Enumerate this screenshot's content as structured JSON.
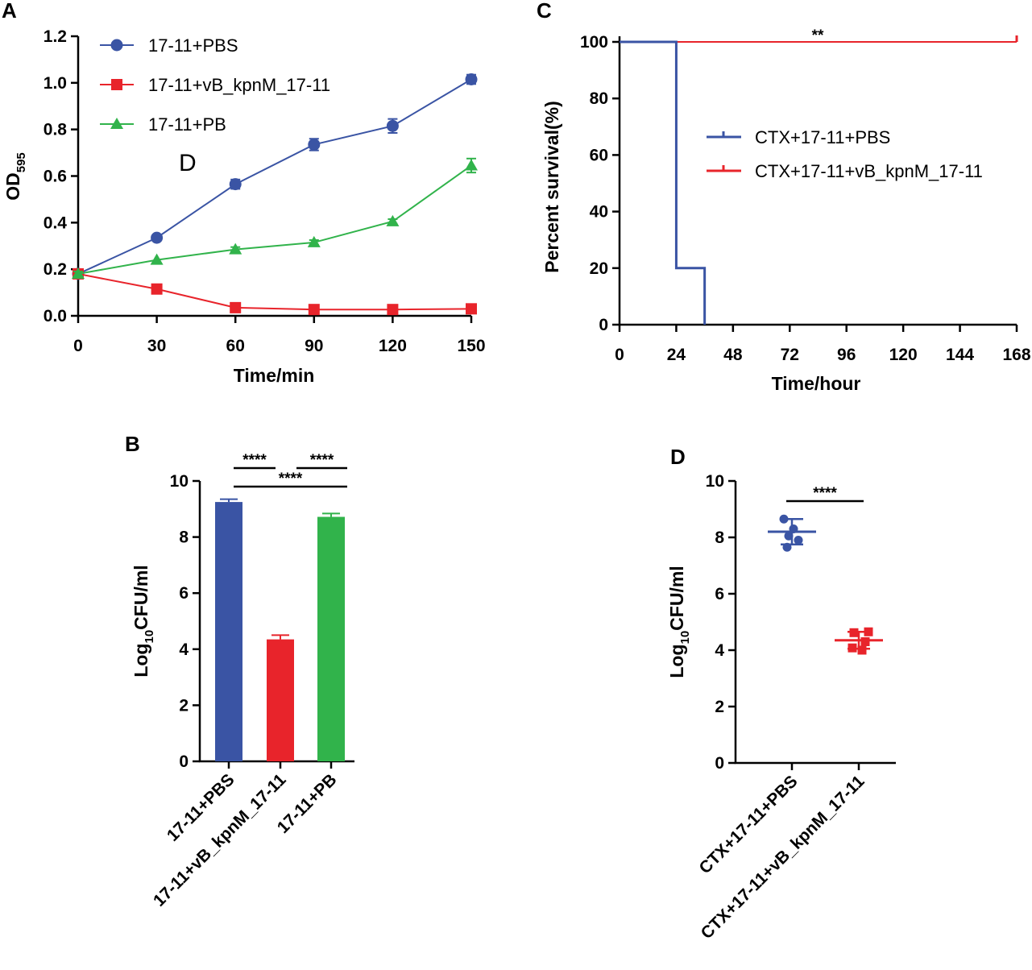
{
  "colors": {
    "blue": "#3a54a4",
    "red": "#e8242b",
    "green": "#31b34b",
    "black": "#000000"
  },
  "chart_data": [
    {
      "panel": "A",
      "type": "line",
      "x": [
        0,
        30,
        60,
        90,
        120,
        150
      ],
      "xticks": [
        "0",
        "30",
        "60",
        "90",
        "120",
        "150"
      ],
      "yticks": [
        "0.0",
        "0.2",
        "0.4",
        "0.6",
        "0.8",
        "1.0",
        "1.2"
      ],
      "xlim": [
        0,
        150
      ],
      "ylim": [
        0,
        1.2
      ],
      "xlabel": "Time/min",
      "ylabel_main": "OD",
      "ylabel_sub": "595",
      "annotation": "D",
      "legend_position": "top-left",
      "series": [
        {
          "name": "17-11+PBS",
          "color": "blue",
          "marker": "circle",
          "values": [
            0.18,
            0.335,
            0.565,
            0.735,
            0.815,
            1.015
          ],
          "errors": [
            0.01,
            0.01,
            0.02,
            0.025,
            0.03,
            0.02
          ]
        },
        {
          "name": "17-11+vB_kpnM_17-11",
          "color": "red",
          "marker": "square",
          "values": [
            0.18,
            0.115,
            0.035,
            0.027,
            0.027,
            0.03
          ],
          "errors": [
            0.01,
            0.008,
            0.005,
            0.004,
            0.004,
            0.004
          ]
        },
        {
          "name": "17-11+PB",
          "color": "green",
          "marker": "triangle",
          "values": [
            0.18,
            0.24,
            0.285,
            0.315,
            0.405,
            0.645
          ],
          "errors": [
            0.01,
            0.008,
            0.01,
            0.01,
            0.01,
            0.03
          ]
        }
      ]
    },
    {
      "panel": "B",
      "type": "bar",
      "categories": [
        "17-11+PBS",
        "17-11+vB_kpnM_17-11",
        "17-11+PB"
      ],
      "values": [
        9.25,
        4.35,
        8.72
      ],
      "errors": [
        0.1,
        0.15,
        0.12
      ],
      "colors": [
        "blue",
        "red",
        "green"
      ],
      "yticks": [
        "0",
        "2",
        "4",
        "6",
        "8",
        "10"
      ],
      "ylim": [
        0,
        10
      ],
      "ylabel_main": "Log",
      "ylabel_sub": "10",
      "ylabel_rest": "CFU/ml",
      "significance": [
        {
          "from": 0,
          "to": 1,
          "label": "****"
        },
        {
          "from": 1,
          "to": 2,
          "label": "****"
        },
        {
          "from": 0,
          "to": 2,
          "label": "****"
        }
      ]
    },
    {
      "panel": "C",
      "type": "line",
      "subtype": "survival",
      "xticks": [
        "0",
        "24",
        "48",
        "72",
        "96",
        "120",
        "144",
        "168"
      ],
      "yticks": [
        "0",
        "20",
        "40",
        "60",
        "80",
        "100"
      ],
      "xlim": [
        0,
        168
      ],
      "ylim": [
        0,
        100
      ],
      "xlabel": "Time/hour",
      "ylabel": "Percent survival(%)",
      "legend_position": "center-right",
      "significance_label": "**",
      "series": [
        {
          "name": "CTX+17-11+PBS",
          "color": "blue",
          "steps": [
            [
              0,
              100
            ],
            [
              24,
              100
            ],
            [
              24,
              20
            ],
            [
              36,
              20
            ],
            [
              36,
              0
            ]
          ]
        },
        {
          "name": "CTX+17-11+vB_kpnM_17-11",
          "color": "red",
          "steps": [
            [
              0,
              100
            ],
            [
              168,
              100
            ]
          ]
        }
      ]
    },
    {
      "panel": "D",
      "type": "scatter",
      "categories": [
        "CTX+17-11+PBS",
        "CTX+17-11+vB_kpnM_17-11"
      ],
      "colors": [
        "blue",
        "red"
      ],
      "markers": [
        "circle",
        "square"
      ],
      "points": [
        [
          8.65,
          8.3,
          8.05,
          7.9,
          7.65
        ],
        [
          4.65,
          4.62,
          4.3,
          4.08,
          4.0
        ]
      ],
      "means": [
        8.2,
        4.35
      ],
      "sd": [
        0.45,
        0.3
      ],
      "yticks": [
        "0",
        "2",
        "4",
        "6",
        "8",
        "10"
      ],
      "ylim": [
        0,
        10
      ],
      "ylabel_main": "Log",
      "ylabel_sub": "10",
      "ylabel_rest": "CFU/ml",
      "significance_label": "****"
    }
  ]
}
